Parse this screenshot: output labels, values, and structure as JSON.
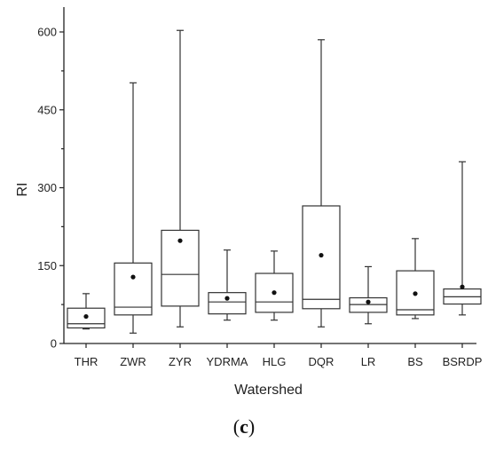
{
  "chart_data": {
    "type": "box",
    "xlabel": "Watershed",
    "ylabel": "RI",
    "ylim": [
      0,
      650
    ],
    "yticks": [
      0,
      150,
      300,
      450,
      600
    ],
    "categories": [
      "THR",
      "ZWR",
      "ZYR",
      "YDRMA",
      "HLG",
      "DQR",
      "LR",
      "BS",
      "BSRDP"
    ],
    "boxes": [
      {
        "category": "THR",
        "min": 28,
        "q1": 30,
        "median": 38,
        "q3": 68,
        "max": 96,
        "mean": 52
      },
      {
        "category": "ZWR",
        "min": 20,
        "q1": 55,
        "median": 70,
        "q3": 155,
        "max": 502,
        "mean": 128
      },
      {
        "category": "ZYR",
        "min": 32,
        "q1": 72,
        "median": 133,
        "q3": 218,
        "max": 603,
        "mean": 198
      },
      {
        "category": "YDRMA",
        "min": 45,
        "q1": 57,
        "median": 80,
        "q3": 98,
        "max": 180,
        "mean": 87
      },
      {
        "category": "HLG",
        "min": 45,
        "q1": 60,
        "median": 80,
        "q3": 135,
        "max": 178,
        "mean": 98
      },
      {
        "category": "DQR",
        "min": 32,
        "q1": 67,
        "median": 85,
        "q3": 265,
        "max": 585,
        "mean": 170
      },
      {
        "category": "LR",
        "min": 38,
        "q1": 60,
        "median": 75,
        "q3": 88,
        "max": 148,
        "mean": 80
      },
      {
        "category": "BS",
        "min": 48,
        "q1": 55,
        "median": 65,
        "q3": 140,
        "max": 202,
        "mean": 96
      },
      {
        "category": "BSRDP",
        "min": 55,
        "q1": 76,
        "median": 90,
        "q3": 105,
        "max": 350,
        "mean": 109
      }
    ],
    "grid": false
  },
  "panel_label": {
    "open": "(",
    "letter": "c",
    "close": ")"
  }
}
